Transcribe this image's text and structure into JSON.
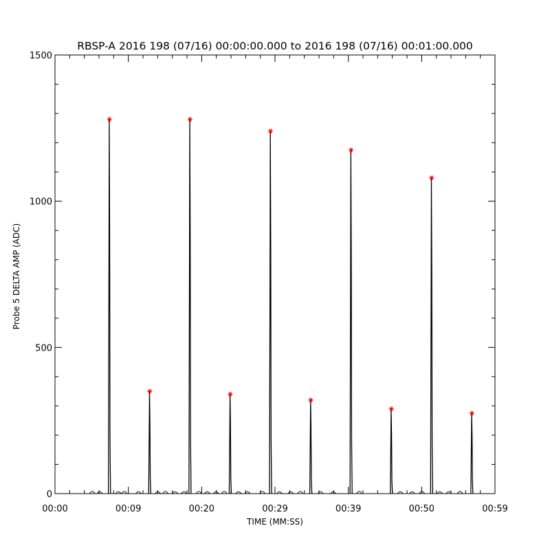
{
  "chart_data": {
    "type": "line",
    "title": "RBSP-A 2016 198 (07/16) 00:00:00.000 to 2016 198 (07/16) 00:01:00.000",
    "xlabel": "TIME (MM:SS)",
    "ylabel": "Probe 5 DELTA AMP (ADC)",
    "xlim": [
      0,
      59
    ],
    "ylim": [
      0,
      1500
    ],
    "x_ticks": [
      {
        "value": 0,
        "label": "00:00"
      },
      {
        "value": 9.833,
        "label": "00:09"
      },
      {
        "value": 19.667,
        "label": "00:20"
      },
      {
        "value": 29.5,
        "label": "00:29"
      },
      {
        "value": 39.333,
        "label": "00:39"
      },
      {
        "value": 49.167,
        "label": "00:50"
      },
      {
        "value": 59,
        "label": "00:59"
      }
    ],
    "y_ticks": [
      {
        "value": 0,
        "label": "0"
      },
      {
        "value": 500,
        "label": "500"
      },
      {
        "value": 1000,
        "label": "1000"
      },
      {
        "value": 1500,
        "label": "1500"
      }
    ],
    "grid": false,
    "series": [
      {
        "kind": "pulses",
        "color": "#000000",
        "pulses": [
          {
            "t": 7.3,
            "peak": 1280
          },
          {
            "t": 12.7,
            "peak": 350
          },
          {
            "t": 18.1,
            "peak": 1280
          },
          {
            "t": 23.5,
            "peak": 340
          },
          {
            "t": 28.9,
            "peak": 1240
          },
          {
            "t": 34.3,
            "peak": 320
          },
          {
            "t": 39.7,
            "peak": 1175
          },
          {
            "t": 45.1,
            "peak": 290
          },
          {
            "t": 50.5,
            "peak": 1080
          },
          {
            "t": 55.9,
            "peak": 275
          }
        ]
      },
      {
        "kind": "peak-markers",
        "marker": "asterisk",
        "color": "#ff0000",
        "points": [
          {
            "x": 7.3,
            "y": 1280
          },
          {
            "x": 12.7,
            "y": 350
          },
          {
            "x": 18.1,
            "y": 1280
          },
          {
            "x": 23.5,
            "y": 340
          },
          {
            "x": 28.9,
            "y": 1240
          },
          {
            "x": 34.3,
            "y": 320
          },
          {
            "x": 39.7,
            "y": 1175
          },
          {
            "x": 45.1,
            "y": 290
          },
          {
            "x": 50.5,
            "y": 1080
          },
          {
            "x": 55.9,
            "y": 275
          }
        ]
      }
    ]
  }
}
